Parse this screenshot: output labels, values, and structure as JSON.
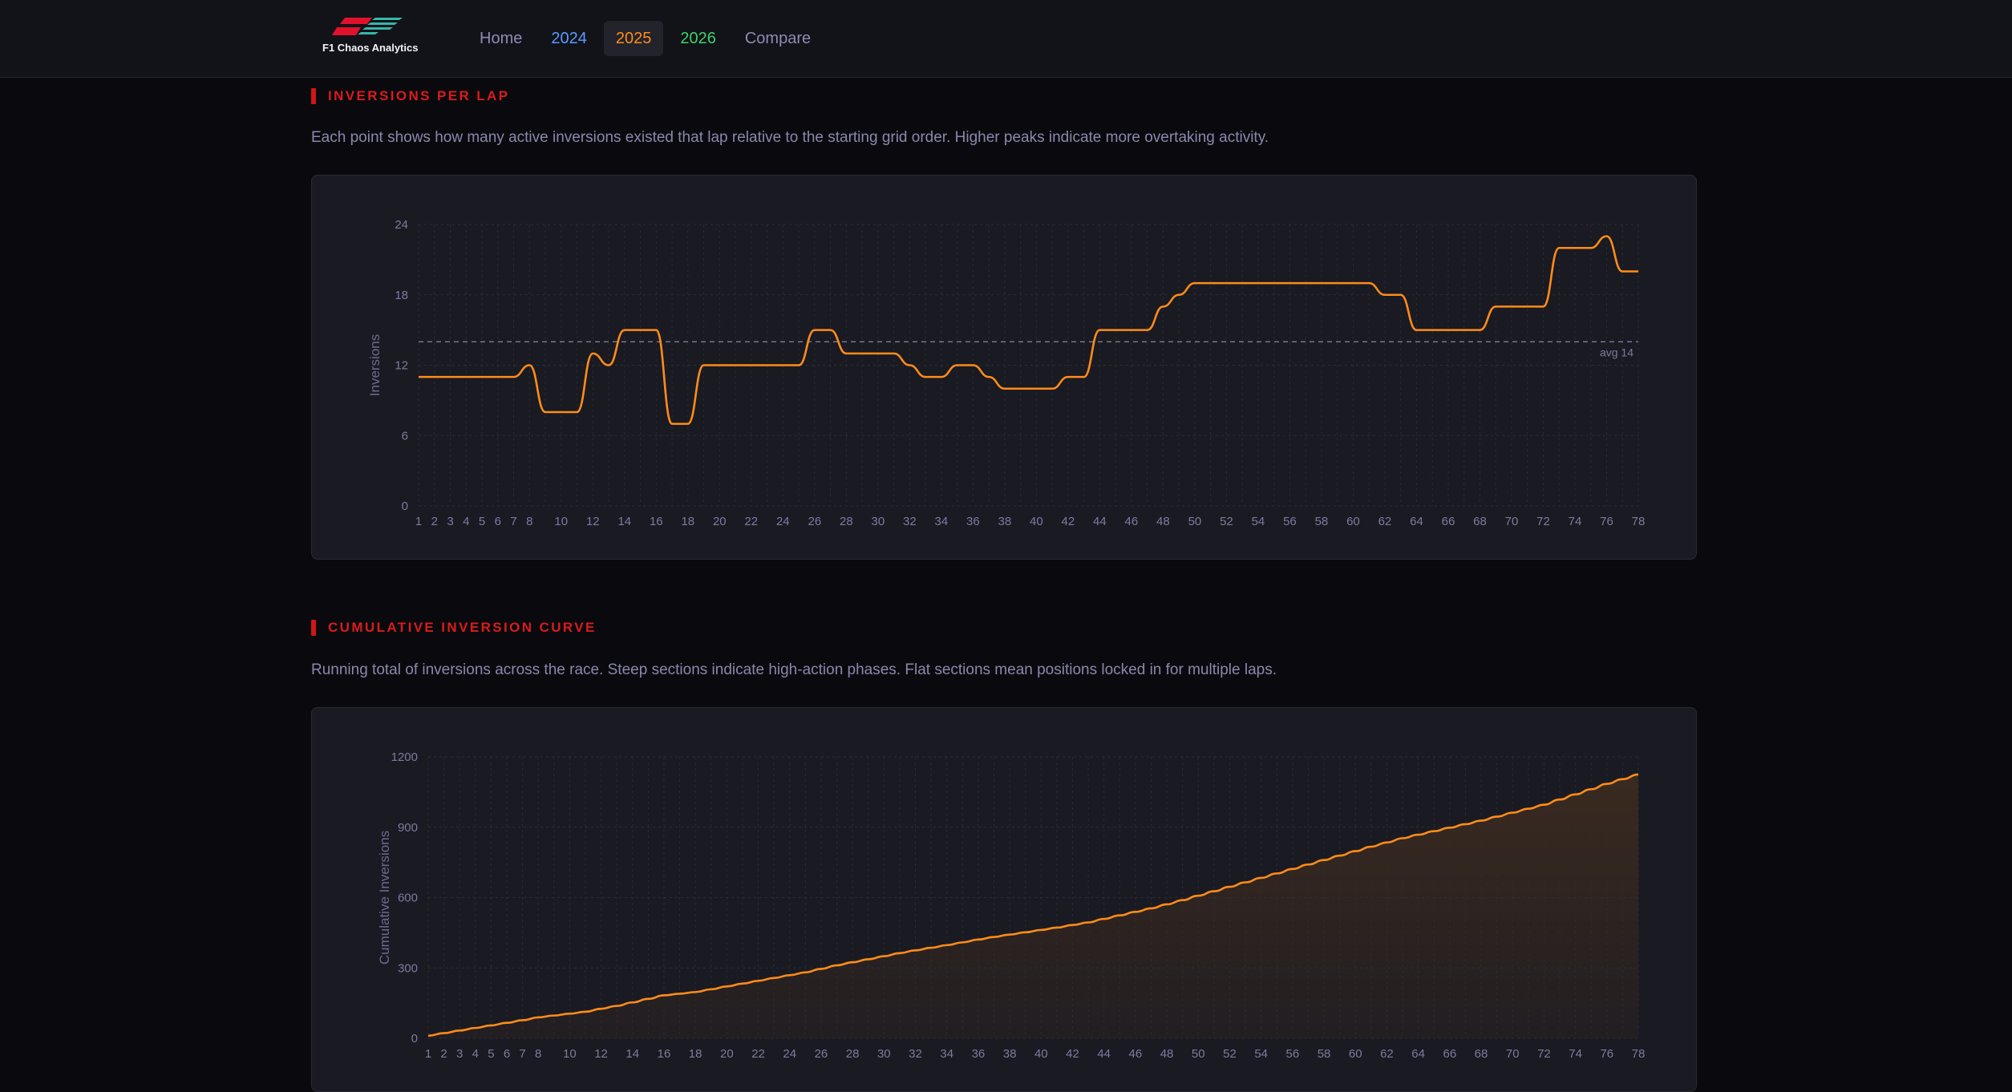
{
  "brand": {
    "name": "F1 Chaos Analytics",
    "logo_icon": "f1-logo-icon"
  },
  "nav": [
    {
      "label": "Home",
      "color": "#8f8bb3",
      "active": false
    },
    {
      "label": "2024",
      "color": "#5a9bff",
      "active": false
    },
    {
      "label": "2025",
      "color": "#ff8c1a",
      "active": true
    },
    {
      "label": "2026",
      "color": "#3ed16a",
      "active": false
    },
    {
      "label": "Compare",
      "color": "#8f8bb3",
      "active": false
    }
  ],
  "sections": [
    {
      "title": "Inversions per lap",
      "description": "Each point shows how many active inversions existed that lap relative to the starting grid order. Higher peaks indicate more overtaking activity."
    },
    {
      "title": "Cumulative inversion curve",
      "description": "Running total of inversions across the race. Steep sections indicate high-action phases. Flat sections mean positions locked in for multiple laps."
    }
  ],
  "chart_data": [
    {
      "type": "line",
      "ylabel": "Inversions",
      "ylim": [
        0,
        24
      ],
      "yticks": [
        0,
        6,
        12,
        18,
        24
      ],
      "xlim": [
        1,
        78
      ],
      "xticks": [
        1,
        2,
        3,
        4,
        5,
        6,
        7,
        8,
        10,
        12,
        14,
        16,
        18,
        20,
        22,
        24,
        26,
        28,
        30,
        32,
        34,
        36,
        38,
        40,
        42,
        44,
        46,
        48,
        50,
        52,
        54,
        56,
        58,
        60,
        62,
        64,
        66,
        68,
        70,
        72,
        74,
        76,
        78
      ],
      "line_color": "#ff8c1a",
      "reference_line": {
        "value": 14,
        "label": "avg 14"
      },
      "grid": true,
      "x": [
        1,
        2,
        3,
        4,
        5,
        6,
        7,
        8,
        9,
        10,
        11,
        12,
        13,
        14,
        15,
        16,
        17,
        18,
        19,
        20,
        21,
        22,
        23,
        24,
        25,
        26,
        27,
        28,
        29,
        30,
        31,
        32,
        33,
        34,
        35,
        36,
        37,
        38,
        39,
        40,
        41,
        42,
        43,
        44,
        45,
        46,
        47,
        48,
        49,
        50,
        51,
        52,
        53,
        54,
        55,
        56,
        57,
        58,
        59,
        60,
        61,
        62,
        63,
        64,
        65,
        66,
        67,
        68,
        69,
        70,
        71,
        72,
        73,
        74,
        75,
        76,
        77,
        78
      ],
      "values": [
        11,
        11,
        11,
        11,
        11,
        11,
        11,
        12,
        8,
        8,
        8,
        13,
        12,
        15,
        15,
        15,
        7,
        7,
        12,
        12,
        12,
        12,
        12,
        12,
        12,
        15,
        15,
        13,
        13,
        13,
        13,
        12,
        11,
        11,
        12,
        12,
        11,
        10,
        10,
        10,
        10,
        11,
        11,
        15,
        15,
        15,
        15,
        17,
        18,
        19,
        19,
        19,
        19,
        19,
        19,
        19,
        19,
        19,
        19,
        19,
        19,
        18,
        18,
        15,
        15,
        15,
        15,
        15,
        17,
        17,
        17,
        17,
        22,
        22,
        22,
        23,
        20,
        20
      ]
    },
    {
      "type": "area",
      "ylabel": "Cumulative Inversions",
      "ylim": [
        0,
        1200
      ],
      "yticks": [
        0,
        300,
        600,
        900,
        1200
      ],
      "xlim": [
        1,
        78
      ],
      "xticks": [
        1,
        2,
        3,
        4,
        5,
        6,
        7,
        8,
        10,
        12,
        14,
        16,
        18,
        20,
        22,
        24,
        26,
        28,
        30,
        32,
        34,
        36,
        38,
        40,
        42,
        44,
        46,
        48,
        50,
        52,
        54,
        56,
        58,
        60,
        62,
        64,
        66,
        68,
        70,
        72,
        74,
        76,
        78
      ],
      "line_color": "#ff8c1a",
      "fill_color": "#3a2a20",
      "grid": true,
      "x": [
        1,
        2,
        3,
        4,
        5,
        6,
        7,
        8,
        9,
        10,
        11,
        12,
        13,
        14,
        15,
        16,
        17,
        18,
        19,
        20,
        21,
        22,
        23,
        24,
        25,
        26,
        27,
        28,
        29,
        30,
        31,
        32,
        33,
        34,
        35,
        36,
        37,
        38,
        39,
        40,
        41,
        42,
        43,
        44,
        45,
        46,
        47,
        48,
        49,
        50,
        51,
        52,
        53,
        54,
        55,
        56,
        57,
        58,
        59,
        60,
        61,
        62,
        63,
        64,
        65,
        66,
        67,
        68,
        69,
        70,
        71,
        72,
        73,
        74,
        75,
        76,
        77,
        78
      ],
      "values": [
        11,
        22,
        33,
        44,
        55,
        66,
        77,
        89,
        97,
        105,
        113,
        126,
        138,
        153,
        168,
        183,
        190,
        197,
        209,
        221,
        233,
        245,
        257,
        269,
        281,
        296,
        311,
        324,
        337,
        350,
        363,
        375,
        386,
        397,
        409,
        421,
        432,
        442,
        452,
        462,
        472,
        483,
        494,
        509,
        524,
        539,
        554,
        571,
        589,
        608,
        627,
        646,
        665,
        684,
        703,
        722,
        741,
        760,
        779,
        798,
        817,
        835,
        853,
        868,
        883,
        898,
        913,
        928,
        945,
        962,
        979,
        996,
        1018,
        1040,
        1062,
        1085,
        1105,
        1125
      ]
    }
  ]
}
